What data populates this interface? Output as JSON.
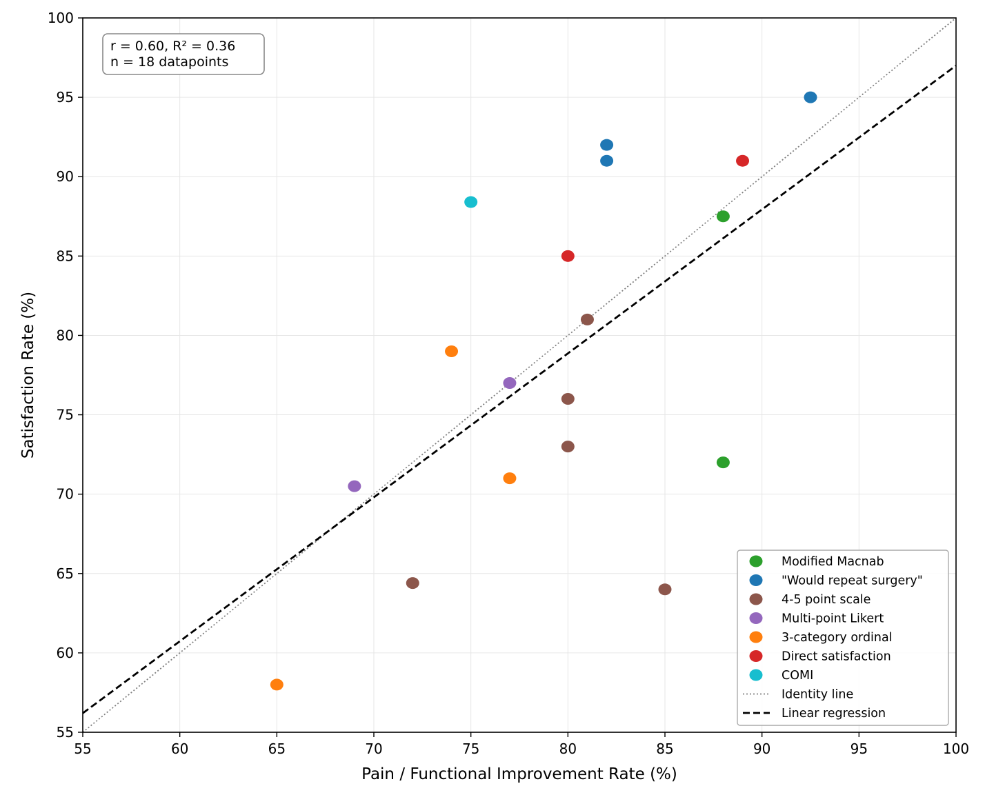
{
  "chart_data": {
    "type": "scatter",
    "xlabel": "Pain / Functional Improvement Rate (%)",
    "ylabel": "Satisfaction Rate (%)",
    "xlim": [
      55,
      100
    ],
    "ylim": [
      55,
      100
    ],
    "xticks": [
      "55",
      "60",
      "65",
      "70",
      "75",
      "80",
      "85",
      "90",
      "95",
      "100"
    ],
    "yticks": [
      "55",
      "60",
      "65",
      "70",
      "75",
      "80",
      "85",
      "90",
      "95",
      "100"
    ],
    "grid": true,
    "legend_position": "lower-right",
    "stats": {
      "line1": "r = 0.60, R² = 0.36",
      "line2": "n = 18 datapoints"
    },
    "series": [
      {
        "name": "Modified Macnab",
        "color": "#2ca02c",
        "points": [
          [
            88,
            87.5
          ],
          [
            88,
            72
          ]
        ]
      },
      {
        "name": "\"Would repeat surgery\"",
        "color": "#1f77b4",
        "points": [
          [
            82,
            92
          ],
          [
            82,
            91
          ],
          [
            92.5,
            95
          ]
        ]
      },
      {
        "name": "4-5 point scale",
        "color": "#8c564b",
        "points": [
          [
            81,
            81
          ],
          [
            80,
            76
          ],
          [
            80,
            73
          ],
          [
            72,
            64.4
          ],
          [
            85,
            64
          ]
        ]
      },
      {
        "name": "Multi-point Likert",
        "color": "#9467bd",
        "points": [
          [
            77,
            77
          ],
          [
            69,
            70.5
          ]
        ]
      },
      {
        "name": "3-category ordinal",
        "color": "#ff7f0e",
        "points": [
          [
            74,
            79
          ],
          [
            77,
            71
          ],
          [
            65,
            58
          ]
        ]
      },
      {
        "name": "Direct satisfaction",
        "color": "#d62728",
        "points": [
          [
            89,
            91
          ],
          [
            80,
            85
          ]
        ]
      },
      {
        "name": "COMI",
        "color": "#17becf",
        "points": [
          [
            75,
            88.4
          ]
        ]
      }
    ],
    "lines": [
      {
        "name": "Identity line",
        "style": "dotted",
        "color": "#808080",
        "from": [
          55,
          55
        ],
        "to": [
          100,
          100
        ]
      },
      {
        "name": "Linear regression",
        "style": "dashed",
        "color": "#000000",
        "from": [
          55,
          56.2
        ],
        "to": [
          100,
          97
        ]
      }
    ]
  }
}
